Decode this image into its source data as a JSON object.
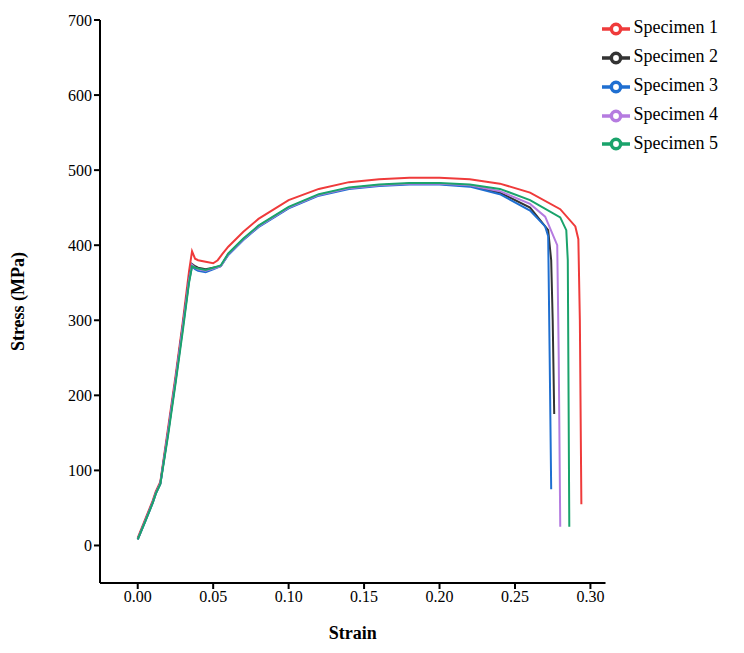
{
  "chart_data": {
    "type": "line",
    "x_label": "Strain",
    "y_label": "Stress (MPa)",
    "xlim": [
      -0.025,
      0.31
    ],
    "xticks": [
      {
        "value": 0,
        "label": "0.00"
      },
      {
        "value": 0.05,
        "label": "0.05"
      },
      {
        "value": 0.1,
        "label": "0.10"
      },
      {
        "value": 0.15,
        "label": "0.15"
      },
      {
        "value": 0.2,
        "label": "0.20"
      },
      {
        "value": 0.25,
        "label": "0.25"
      },
      {
        "value": 0.3,
        "label": "0.30"
      }
    ],
    "ylim": [
      -50,
      700
    ],
    "yticks": [
      0,
      100,
      200,
      300,
      400,
      500,
      600,
      700
    ],
    "grid": false,
    "legend": "top-right",
    "series": [
      {
        "name": "Specimen 1",
        "color": "#ef3b3b",
        "x": [
          0,
          0.005,
          0.01,
          0.012,
          0.015,
          0.02,
          0.025,
          0.03,
          0.034,
          0.036,
          0.038,
          0.04,
          0.045,
          0.05,
          0.053,
          0.056,
          0.06,
          0.07,
          0.08,
          0.1,
          0.12,
          0.14,
          0.16,
          0.18,
          0.2,
          0.22,
          0.24,
          0.26,
          0.28,
          0.29,
          0.292,
          0.293,
          0.294
        ],
        "values": [
          10,
          35,
          60,
          72,
          85,
          155,
          225,
          300,
          365,
          392,
          382,
          380,
          378,
          376,
          380,
          388,
          398,
          418,
          435,
          460,
          475,
          484,
          488,
          490,
          490,
          488,
          482,
          470,
          448,
          425,
          408,
          300,
          55
        ]
      },
      {
        "name": "Specimen 2",
        "color": "#333333",
        "x": [
          0,
          0.005,
          0.01,
          0.012,
          0.015,
          0.02,
          0.025,
          0.03,
          0.034,
          0.036,
          0.038,
          0.04,
          0.045,
          0.05,
          0.055,
          0.06,
          0.07,
          0.08,
          0.1,
          0.12,
          0.14,
          0.16,
          0.18,
          0.2,
          0.22,
          0.24,
          0.26,
          0.272,
          0.274,
          0.275,
          0.276
        ],
        "values": [
          8,
          33,
          58,
          70,
          83,
          150,
          220,
          295,
          355,
          375,
          372,
          370,
          368,
          370,
          372,
          388,
          408,
          425,
          450,
          467,
          476,
          480,
          482,
          482,
          479,
          470,
          450,
          420,
          380,
          300,
          175
        ]
      },
      {
        "name": "Specimen 3",
        "color": "#1f6fd1",
        "x": [
          0,
          0.005,
          0.01,
          0.012,
          0.015,
          0.02,
          0.025,
          0.03,
          0.034,
          0.036,
          0.038,
          0.04,
          0.045,
          0.05,
          0.055,
          0.06,
          0.07,
          0.08,
          0.1,
          0.12,
          0.14,
          0.16,
          0.18,
          0.2,
          0.22,
          0.24,
          0.26,
          0.27,
          0.272,
          0.273,
          0.274
        ],
        "values": [
          8,
          32,
          57,
          69,
          82,
          148,
          218,
          292,
          352,
          372,
          368,
          366,
          364,
          368,
          372,
          387,
          407,
          424,
          449,
          466,
          475,
          479,
          481,
          481,
          478,
          468,
          446,
          425,
          412,
          250,
          75
        ]
      },
      {
        "name": "Specimen 4",
        "color": "#b57be0",
        "x": [
          0,
          0.005,
          0.01,
          0.012,
          0.015,
          0.02,
          0.025,
          0.03,
          0.034,
          0.036,
          0.038,
          0.04,
          0.045,
          0.05,
          0.055,
          0.06,
          0.07,
          0.08,
          0.1,
          0.12,
          0.14,
          0.16,
          0.18,
          0.2,
          0.22,
          0.24,
          0.26,
          0.27,
          0.278,
          0.279,
          0.28
        ],
        "values": [
          8,
          33,
          58,
          70,
          83,
          150,
          220,
          294,
          354,
          374,
          370,
          368,
          366,
          369,
          372,
          388,
          408,
          425,
          450,
          467,
          476,
          480,
          482,
          482,
          480,
          472,
          455,
          438,
          400,
          250,
          25
        ]
      },
      {
        "name": "Specimen 5",
        "color": "#1aa36b",
        "x": [
          0,
          0.005,
          0.01,
          0.012,
          0.015,
          0.02,
          0.025,
          0.03,
          0.034,
          0.036,
          0.038,
          0.04,
          0.045,
          0.05,
          0.055,
          0.06,
          0.07,
          0.08,
          0.1,
          0.12,
          0.14,
          0.16,
          0.18,
          0.2,
          0.22,
          0.24,
          0.26,
          0.28,
          0.284,
          0.285,
          0.286
        ],
        "values": [
          8,
          32,
          57,
          69,
          82,
          145,
          215,
          288,
          350,
          372,
          370,
          369,
          367,
          370,
          373,
          389,
          409,
          426,
          451,
          468,
          477,
          481,
          483,
          483,
          481,
          475,
          460,
          437,
          420,
          380,
          25
        ]
      }
    ]
  }
}
